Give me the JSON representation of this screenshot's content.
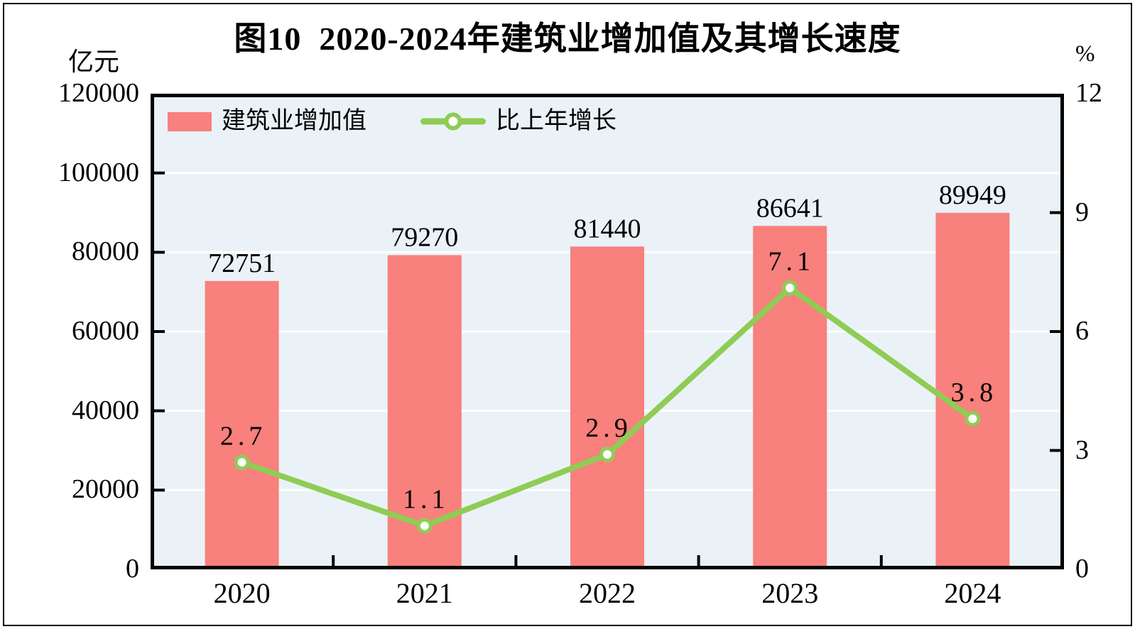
{
  "chart_data": {
    "type": "bar",
    "title": "图10  2020-2024年建筑业增加值及其增长速度",
    "categories": [
      "2020",
      "2021",
      "2022",
      "2023",
      "2024"
    ],
    "series": [
      {
        "name": "建筑业增加值",
        "type": "bar",
        "axis": "left",
        "color": "#F8807D",
        "values": [
          72751,
          79270,
          81440,
          86641,
          89949
        ],
        "labels": [
          "72751",
          "79270",
          "81440",
          "86641",
          "89949"
        ]
      },
      {
        "name": "比上年增长",
        "type": "line",
        "axis": "right",
        "color": "#8FCC55",
        "marker": "circle-white-fill",
        "values": [
          2.7,
          1.1,
          2.9,
          7.1,
          3.8
        ],
        "labels": [
          "2.7",
          "1.1",
          "2.9",
          "7.1",
          "3.8"
        ]
      }
    ],
    "left_axis": {
      "unit": "亿元",
      "min": 0,
      "max": 120000,
      "step": 20000,
      "tick_labels": [
        "0",
        "20000",
        "40000",
        "60000",
        "80000",
        "100000",
        "120000"
      ]
    },
    "right_axis": {
      "unit": "%",
      "min": 0,
      "max": 12,
      "step": 3,
      "tick_labels": [
        "0",
        "3",
        "6",
        "9",
        "12"
      ]
    },
    "legend": {
      "position": "top-left-inside",
      "items": [
        "建筑业增加值",
        "比上年增长"
      ]
    },
    "grid": {
      "horizontal": true,
      "vertical": false,
      "color": "#FFFFFF"
    },
    "colors": {
      "bar": "#F8807D",
      "line": "#8FCC55",
      "plot_bg": "#EAF2F7",
      "grid": "#FFFFFF",
      "axis": "#000000",
      "text": "#000000"
    }
  }
}
